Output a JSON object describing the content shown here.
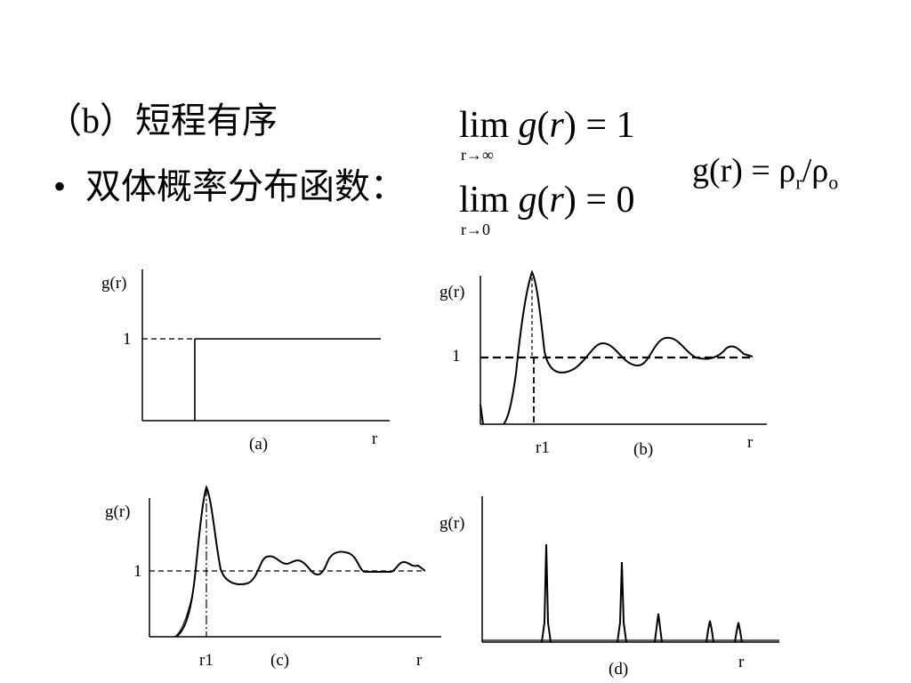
{
  "heading": "（b）短程有序",
  "bullet": {
    "marker": "•",
    "text": "双体概率分布函数："
  },
  "limits": [
    {
      "lim": "lim",
      "func": "g",
      "open": "(",
      "var": "r",
      "close": ")",
      "equals": "= 1",
      "subscript": "r→∞"
    },
    {
      "lim": "lim",
      "func": "g",
      "open": "(",
      "var": "r",
      "close": ")",
      "equals": "= 0",
      "subscript": "r→0"
    }
  ],
  "ratio": {
    "lhs": "g(r) = ρ",
    "sub1": "r",
    "slash": "/ρ",
    "sub2": "o"
  },
  "plots": {
    "a": {
      "ylabel": "g(r)",
      "one": "1",
      "caption": "(a)",
      "xlabel": "r"
    },
    "b": {
      "ylabel": "g(r)",
      "one": "1",
      "caption": "(b)",
      "xlabel": "r",
      "r1": "r1"
    },
    "c": {
      "ylabel": "g(r)",
      "one": "1",
      "caption": "(c)",
      "xlabel": "r",
      "r1": "r1"
    },
    "d": {
      "ylabel": "g(r)",
      "caption": "(d)",
      "xlabel": "r"
    }
  }
}
